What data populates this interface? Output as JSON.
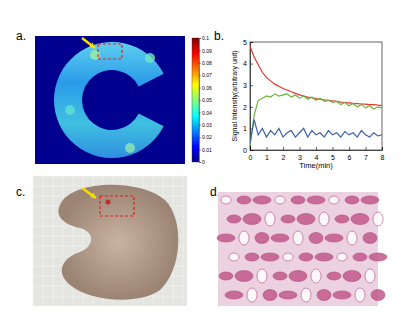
{
  "panel_labels": [
    "a.",
    "b.",
    "c.",
    "d."
  ],
  "colorbar": {
    "range": [
      0,
      0.1
    ],
    "ticks": [
      0,
      0.01,
      0.02,
      0.03,
      0.04,
      0.05,
      0.06,
      0.07,
      0.08,
      0.09,
      0.1
    ]
  },
  "chart_data": {
    "type": "line",
    "x_label": "Time(min)",
    "y_label": "Signal Intensity(arbitrary unit)",
    "xlim": [
      0,
      8
    ],
    "ylim": [
      0,
      5
    ],
    "xticks": [
      0,
      1,
      2,
      3,
      4,
      5,
      6,
      7,
      8
    ],
    "yticks": [
      0,
      1,
      2,
      3,
      4,
      5
    ],
    "x": [
      0,
      0.25,
      0.5,
      0.75,
      1,
      1.25,
      1.5,
      1.75,
      2,
      2.25,
      2.5,
      2.75,
      3,
      3.25,
      3.5,
      3.75,
      4,
      4.25,
      4.5,
      4.75,
      5,
      5.25,
      5.5,
      5.75,
      6,
      6.25,
      6.5,
      6.75,
      7,
      7.25,
      7.5,
      7.75,
      8
    ],
    "series": [
      {
        "color": "#e8352f",
        "values": [
          4.8,
          4.3,
          3.95,
          3.6,
          3.35,
          3.2,
          3.05,
          2.95,
          2.85,
          2.78,
          2.7,
          2.62,
          2.55,
          2.5,
          2.45,
          2.42,
          2.38,
          2.35,
          2.32,
          2.3,
          2.27,
          2.25,
          2.22,
          2.2,
          2.18,
          2.16,
          2.15,
          2.13,
          2.12,
          2.1,
          2.1,
          2.08,
          2.07
        ]
      },
      {
        "color": "#6ab43c",
        "values": [
          0.2,
          1.6,
          2.3,
          2.4,
          2.5,
          2.45,
          2.6,
          2.5,
          2.55,
          2.6,
          2.45,
          2.55,
          2.4,
          2.5,
          2.35,
          2.45,
          2.3,
          2.4,
          2.25,
          2.3,
          2.2,
          2.25,
          2.1,
          2.2,
          2.05,
          2.15,
          2.0,
          2.1,
          1.95,
          2.05,
          1.9,
          2.0,
          1.95
        ]
      },
      {
        "color": "#3a62a8",
        "values": [
          0.3,
          1.4,
          0.7,
          1.0,
          0.6,
          0.9,
          0.7,
          1.0,
          0.6,
          0.8,
          0.9,
          0.6,
          0.8,
          1.0,
          0.6,
          0.9,
          0.7,
          0.8,
          0.6,
          0.9,
          0.7,
          0.8,
          0.6,
          0.85,
          0.7,
          0.8,
          0.6,
          0.9,
          0.7,
          0.6,
          0.8,
          0.65,
          0.7
        ]
      }
    ]
  }
}
